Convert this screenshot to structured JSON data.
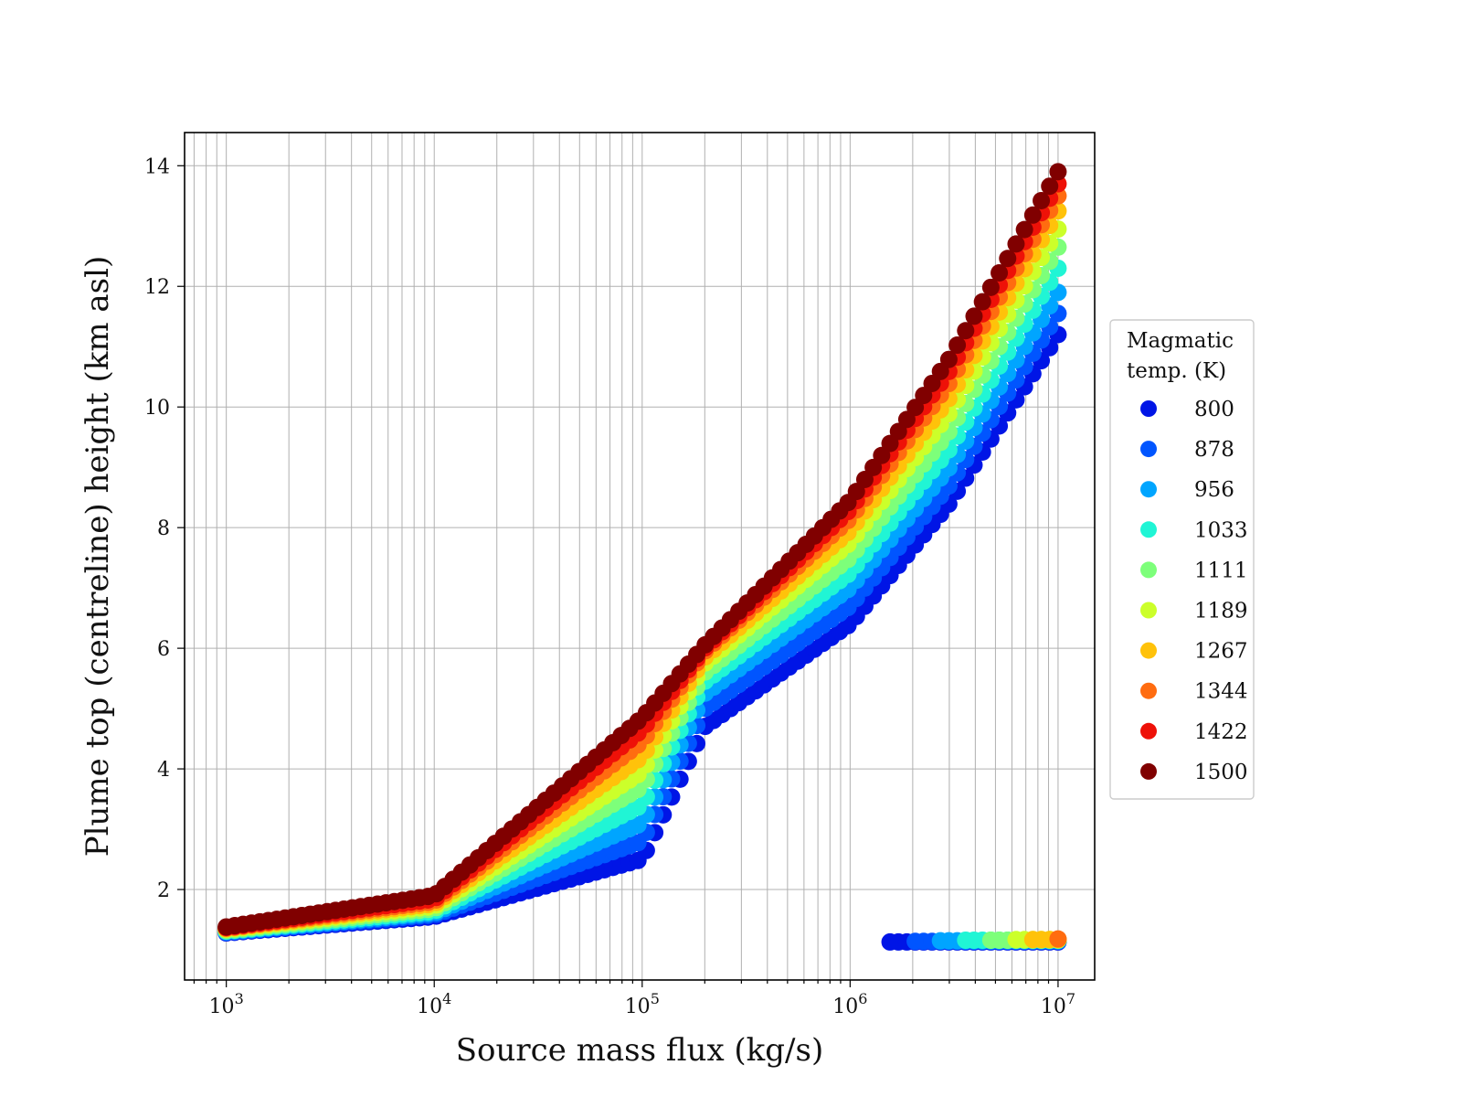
{
  "chart_data": {
    "type": "scatter",
    "xlabel": "Source mass flux (kg/s)",
    "ylabel": "Plume top (centreline) height (km asl)",
    "xscale": "log",
    "xlim": [
      630,
      15000000
    ],
    "ylim": [
      0.5,
      14.55
    ],
    "x_tick_labels": [
      {
        "base": "10",
        "exp": "3"
      },
      {
        "base": "10",
        "exp": "4"
      },
      {
        "base": "10",
        "exp": "5"
      },
      {
        "base": "10",
        "exp": "6"
      },
      {
        "base": "10",
        "exp": "7"
      }
    ],
    "x_tick_values": [
      1000,
      10000,
      100000,
      1000000,
      10000000
    ],
    "y_ticks": [
      2,
      4,
      6,
      8,
      10,
      12,
      14
    ],
    "grid": true,
    "legend": {
      "title_line1": "Magmatic",
      "title_line2": "temp. (K)",
      "placement": "right-outside"
    },
    "points_per_series": 100,
    "series": [
      {
        "name": "800",
        "color": "#0015e6",
        "upper": [
          [
            1000,
            1.28
          ],
          [
            10000,
            1.55
          ],
          [
            100000,
            2.5
          ],
          [
            200000,
            4.7
          ],
          [
            1000000,
            6.4
          ],
          [
            3000000,
            8.4
          ],
          [
            10000000,
            11.2
          ]
        ],
        "lower": [
          [
            1500000,
            1.13
          ],
          [
            10000000,
            1.13
          ]
        ],
        "knee": 6500000
      },
      {
        "name": "878",
        "color": "#0055ff",
        "upper": [
          [
            1000,
            1.29
          ],
          [
            10000,
            1.58
          ],
          [
            100000,
            2.8
          ],
          [
            200000,
            5.0
          ],
          [
            1000000,
            6.7
          ],
          [
            3000000,
            8.7
          ],
          [
            10000000,
            11.55
          ]
        ],
        "lower": [
          [
            2000000,
            1.14
          ],
          [
            10000000,
            1.14
          ]
        ],
        "knee": 6000000
      },
      {
        "name": "956",
        "color": "#00a5ff",
        "upper": [
          [
            1000,
            1.3
          ],
          [
            10000,
            1.61
          ],
          [
            100000,
            3.1
          ],
          [
            200000,
            5.25
          ],
          [
            1000000,
            7.0
          ],
          [
            3000000,
            9.0
          ],
          [
            10000000,
            11.9
          ]
        ],
        "lower": [
          [
            2700000,
            1.15
          ],
          [
            10000000,
            1.15
          ]
        ],
        "knee": 5500000
      },
      {
        "name": "1033",
        "color": "#20f5d5",
        "upper": [
          [
            1000,
            1.31
          ],
          [
            10000,
            1.64
          ],
          [
            100000,
            3.4
          ],
          [
            200000,
            5.45
          ],
          [
            1000000,
            7.25
          ],
          [
            3000000,
            9.3
          ],
          [
            10000000,
            12.3
          ]
        ],
        "lower": [
          [
            3500000,
            1.16
          ],
          [
            10000000,
            1.16
          ]
        ],
        "knee": 5000000
      },
      {
        "name": "1111",
        "color": "#7dff7a",
        "upper": [
          [
            1000,
            1.32
          ],
          [
            10000,
            1.68
          ],
          [
            100000,
            3.7
          ],
          [
            200000,
            5.6
          ],
          [
            1000000,
            7.5
          ],
          [
            3000000,
            9.6
          ],
          [
            10000000,
            12.65
          ]
        ],
        "lower": [
          [
            4500000,
            1.16
          ],
          [
            10000000,
            1.16
          ]
        ],
        "knee": 4600000
      },
      {
        "name": "1189",
        "color": "#ccff2a",
        "upper": [
          [
            1000,
            1.34
          ],
          [
            10000,
            1.72
          ],
          [
            100000,
            3.95
          ],
          [
            200000,
            5.75
          ],
          [
            1000000,
            7.75
          ],
          [
            3000000,
            9.9
          ],
          [
            10000000,
            12.95
          ]
        ],
        "lower": [
          [
            6000000,
            1.17
          ],
          [
            10000000,
            1.17
          ]
        ],
        "knee": 4300000
      },
      {
        "name": "1267",
        "color": "#ffc20a",
        "upper": [
          [
            1000,
            1.35
          ],
          [
            10000,
            1.76
          ],
          [
            100000,
            4.2
          ],
          [
            200000,
            5.85
          ],
          [
            1000000,
            7.95
          ],
          [
            3000000,
            10.15
          ],
          [
            10000000,
            13.25
          ]
        ],
        "lower": [
          [
            7500000,
            1.17
          ],
          [
            10000000,
            1.17
          ]
        ],
        "knee": 4000000
      },
      {
        "name": "1344",
        "color": "#ff6c10",
        "upper": [
          [
            1000,
            1.36
          ],
          [
            10000,
            1.8
          ],
          [
            100000,
            4.45
          ],
          [
            200000,
            5.95
          ],
          [
            1000000,
            8.15
          ],
          [
            3000000,
            10.4
          ],
          [
            10000000,
            13.5
          ]
        ],
        "lower": [
          [
            9500000,
            1.18
          ],
          [
            10000000,
            1.18
          ]
        ],
        "knee": 3800000
      },
      {
        "name": "1422",
        "color": "#ee1108",
        "upper": [
          [
            1000,
            1.37
          ],
          [
            10000,
            1.84
          ],
          [
            100000,
            4.65
          ],
          [
            200000,
            6.0
          ],
          [
            1000000,
            8.3
          ],
          [
            3000000,
            10.6
          ],
          [
            10000000,
            13.7
          ]
        ],
        "lower": [],
        "knee": 3600000
      },
      {
        "name": "1500",
        "color": "#800000",
        "upper": [
          [
            1000,
            1.38
          ],
          [
            10000,
            1.9
          ],
          [
            100000,
            4.85
          ],
          [
            200000,
            6.05
          ],
          [
            1000000,
            8.45
          ],
          [
            3000000,
            10.8
          ],
          [
            10000000,
            13.9
          ]
        ],
        "lower": [],
        "knee": 3500000
      }
    ]
  }
}
